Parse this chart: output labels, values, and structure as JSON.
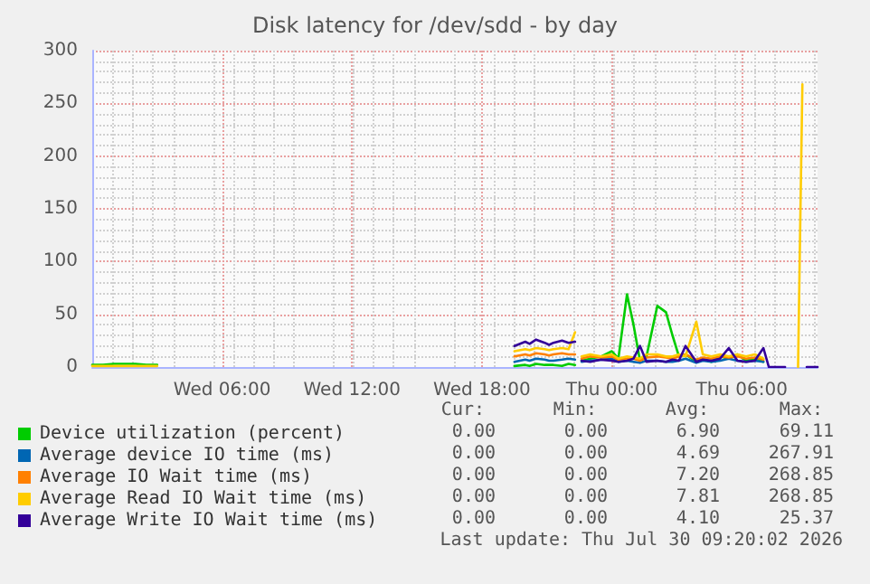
{
  "chart_data": {
    "type": "line",
    "title": "Disk latency for /dev/sdd - by day",
    "x": [
      "2026-07-29T00:00",
      "2026-07-29T00:30",
      "2026-07-29T01:00",
      "2026-07-29T01:30",
      "2026-07-29T02:00",
      "2026-07-29T02:30",
      "2026-07-29T03:00",
      "2026-07-29T03:12",
      "2026-07-29T19:30",
      "2026-07-29T20:00",
      "2026-07-29T20:12",
      "2026-07-29T20:30",
      "2026-07-29T20:54",
      "2026-07-29T21:06",
      "2026-07-29T21:18",
      "2026-07-29T21:42",
      "2026-07-29T22:00",
      "2026-07-29T22:18",
      "2026-07-29T22:27",
      "2026-07-29T22:36",
      "2026-07-29T23:00",
      "2026-07-29T23:30",
      "2026-07-30T00:00",
      "2026-07-30T00:18",
      "2026-07-30T00:42",
      "2026-07-30T01:00",
      "2026-07-30T01:18",
      "2026-07-30T01:36",
      "2026-07-30T02:06",
      "2026-07-30T02:30",
      "2026-07-30T02:48",
      "2026-07-30T03:06",
      "2026-07-30T03:24",
      "2026-07-30T03:54",
      "2026-07-30T04:12",
      "2026-07-30T04:36",
      "2026-07-30T05:00",
      "2026-07-30T05:24",
      "2026-07-30T05:48",
      "2026-07-30T06:12",
      "2026-07-30T06:36",
      "2026-07-30T07:00",
      "2026-07-30T07:15",
      "2026-07-30T07:30",
      "2026-07-30T08:00",
      "2026-07-30T08:36",
      "2026-07-30T08:48",
      "2026-07-30T09:00",
      "2026-07-30T09:30"
    ],
    "xlim": [
      "2026-07-29T00:00",
      "2026-07-30T09:30"
    ],
    "xticks": [
      {
        "value": "2026-07-29T06:00",
        "label": "Wed 06:00"
      },
      {
        "value": "2026-07-29T12:00",
        "label": "Wed 12:00"
      },
      {
        "value": "2026-07-29T18:00",
        "label": "Wed 18:00"
      },
      {
        "value": "2026-07-30T00:00",
        "label": "Thu 00:00"
      },
      {
        "value": "2026-07-30T06:00",
        "label": "Thu 06:00"
      }
    ],
    "ylim": [
      0,
      300
    ],
    "yticks": [
      0,
      50,
      100,
      150,
      200,
      250,
      300
    ],
    "grid": true,
    "legend": "bottom",
    "marker": "none",
    "line_style": "solid",
    "series": [
      {
        "name": "Device utilization (percent)",
        "color": "#00cc00",
        "values": [
          2,
          2,
          3,
          3,
          3,
          2,
          2,
          null,
          1,
          2,
          1,
          3,
          2,
          2,
          2,
          1,
          3,
          2,
          null,
          6,
          8,
          10,
          15,
          8,
          69,
          40,
          6,
          10,
          58,
          52,
          30,
          10,
          12,
          5,
          8,
          5,
          10,
          8,
          12,
          6,
          8,
          5,
          null,
          null,
          null,
          null,
          null,
          null,
          null
        ]
      },
      {
        "name": "Average device IO time (ms)",
        "color": "#0066b3",
        "values": [
          null,
          null,
          null,
          null,
          null,
          null,
          null,
          null,
          5,
          7,
          6,
          8,
          7,
          6,
          6,
          7,
          8,
          7,
          null,
          5,
          6,
          7,
          8,
          5,
          6,
          5,
          4,
          6,
          6,
          5,
          5,
          6,
          8,
          4,
          6,
          5,
          6,
          8,
          6,
          5,
          6,
          5,
          null,
          null,
          null,
          null,
          null,
          null,
          null
        ]
      },
      {
        "name": "Average IO Wait time (ms)",
        "color": "#ff8000",
        "values": [
          null,
          null,
          null,
          null,
          null,
          null,
          null,
          null,
          10,
          12,
          11,
          13,
          12,
          11,
          12,
          13,
          12,
          12,
          null,
          8,
          10,
          9,
          10,
          7,
          8,
          8,
          6,
          9,
          10,
          9,
          8,
          10,
          12,
          7,
          9,
          8,
          10,
          9,
          10,
          8,
          9,
          7,
          null,
          null,
          null,
          null,
          null,
          null,
          null
        ]
      },
      {
        "name": "Average Read IO Wait time (ms)",
        "color": "#ffcc00",
        "values": [
          1,
          1,
          1,
          1,
          1,
          1,
          1,
          null,
          15,
          17,
          16,
          18,
          17,
          16,
          17,
          18,
          17,
          33,
          null,
          10,
          12,
          10,
          12,
          8,
          10,
          9,
          8,
          12,
          12,
          10,
          10,
          12,
          10,
          43,
          12,
          10,
          12,
          10,
          12,
          10,
          12,
          8,
          null,
          null,
          null,
          0,
          268,
          null,
          null
        ]
      },
      {
        "name": "Average Write IO Wait time (ms)",
        "color": "#330099",
        "values": [
          null,
          null,
          null,
          null,
          null,
          null,
          null,
          null,
          20,
          24,
          22,
          26,
          23,
          21,
          23,
          25,
          23,
          24,
          null,
          6,
          5,
          7,
          6,
          5,
          6,
          8,
          20,
          5,
          6,
          5,
          7,
          6,
          20,
          5,
          7,
          6,
          8,
          18,
          6,
          5,
          6,
          18,
          0,
          0,
          0,
          null,
          null,
          0,
          0
        ]
      }
    ],
    "annotations": [
      "Cur:",
      "Min:",
      "Avg:",
      "Max:",
      "0.00",
      "0.00",
      "6.90",
      "69.11",
      "0.00",
      "0.00",
      "4.69",
      "267.91",
      "0.00",
      "0.00",
      "7.20",
      "268.85",
      "0.00",
      "0.00",
      "7.81",
      "268.85",
      "0.00",
      "0.00",
      "4.10",
      "25.37",
      "Last update: Thu Jul 30 09:20:02 2026"
    ]
  }
}
